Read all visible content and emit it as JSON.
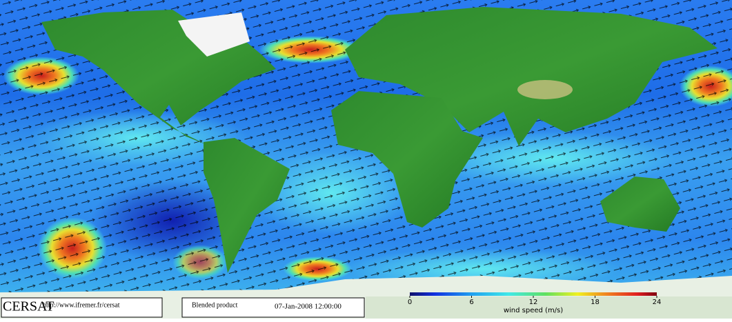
{
  "logo": {
    "name": "CERSAT",
    "url": "http://www.ifremer.fr/cersat"
  },
  "product": {
    "name": "Blended product",
    "date": "07-Jan-2008 12:00:00"
  },
  "colorbar": {
    "label": "wind speed (m/s)",
    "lim": [
      0,
      24
    ],
    "ticks": [
      0,
      6,
      12,
      18,
      24
    ]
  }
}
